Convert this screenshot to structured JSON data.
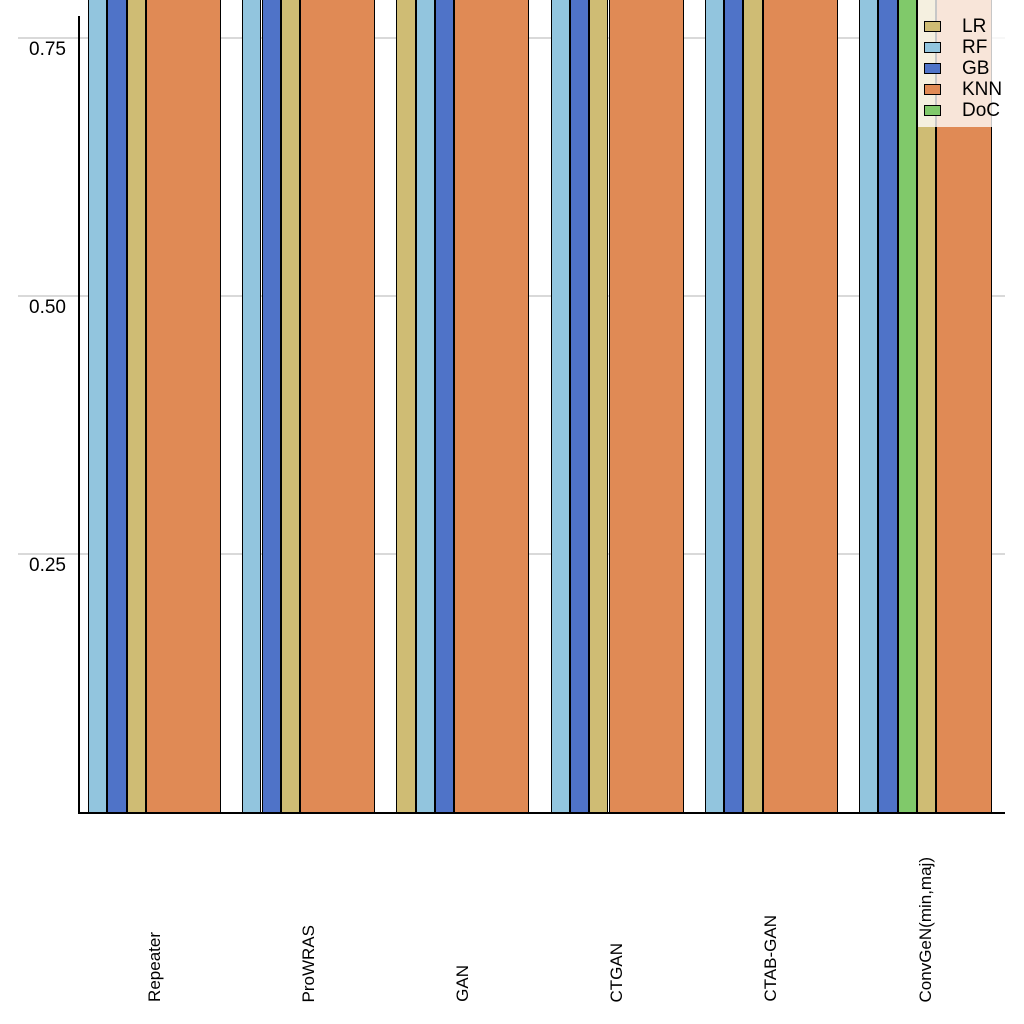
{
  "figure": {
    "background": "#ffffff",
    "gridline_color": "#d9d9d9",
    "axis_color": "#000000",
    "bar_border_color": "#000000",
    "legend_background": "rgba(255,255,255,0.78)"
  },
  "y_axis": {
    "tick_labels": [
      "0.75",
      "0.50",
      "0.25"
    ],
    "tick_values": [
      0.75,
      0.5,
      0.25
    ]
  },
  "x_axis": {
    "category_labels": [
      "Repeater",
      "ProWRAS",
      "GAN",
      "CTGAN",
      "CTAB-GAN",
      "ConvGeN(min,maj)"
    ]
  },
  "legend": {
    "items": [
      {
        "label": "LR",
        "color": "#cfbc74"
      },
      {
        "label": "RF",
        "color": "#92c5de"
      },
      {
        "label": "GB",
        "color": "#4f73c8"
      },
      {
        "label": "KNN",
        "color": "#e08a55"
      },
      {
        "label": "DoC",
        "color": "#80c96a"
      }
    ]
  },
  "chart_data": {
    "type": "bar",
    "title": "",
    "xlabel": "",
    "ylabel": "",
    "categories": [
      "Repeater",
      "ProWRAS",
      "GAN",
      "CTGAN",
      "CTAB-GAN",
      "ConvGeN(min,maj)"
    ],
    "series": [
      "LR",
      "RF",
      "GB",
      "KNN",
      "DoC"
    ],
    "series_colors": {
      "LR": "#cfbc74",
      "RF": "#92c5de",
      "GB": "#4f73c8",
      "KNN": "#e08a55",
      "DoC": "#80c96a"
    },
    "y_ticks": [
      0.25,
      0.5,
      0.75
    ],
    "y_visible_range": [
      0,
      0.79
    ],
    "grid": "horizontal gridlines at each y tick, extending under the tick labels",
    "legend_position": "top-right, semi-transparent box overlapping the last bar group, top edge cut off by crop",
    "groups": [
      {
        "category": "Repeater",
        "bar_order": [
          "RF",
          "GB",
          "LR",
          "KNN"
        ]
      },
      {
        "category": "ProWRAS",
        "bar_order": [
          "RF",
          "GB",
          "LR",
          "KNN"
        ]
      },
      {
        "category": "GAN",
        "bar_order": [
          "LR",
          "RF",
          "GB",
          "KNN"
        ]
      },
      {
        "category": "CTGAN",
        "bar_order": [
          "RF",
          "GB",
          "LR",
          "KNN"
        ]
      },
      {
        "category": "CTAB-GAN",
        "bar_order": [
          "RF",
          "GB",
          "LR",
          "KNN"
        ]
      },
      {
        "category": "ConvGeN(min,maj)",
        "bar_order": [
          "RF",
          "GB",
          "DoC",
          "LR",
          "KNN"
        ]
      }
    ],
    "bar_values": "all bars > 0.79",
    "values_note": "Screenshot is cropped: every bar extends past the top edge of the image, so exact bar heights are not visible; all bars exceed the visible range (~0.79). The KNN bar is drawn much wider than the other bars in every group."
  }
}
